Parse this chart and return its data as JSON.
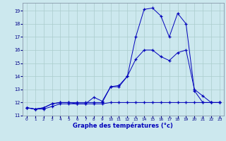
{
  "xlabel": "Graphe des températures (°c)",
  "bg_color": "#cce8ee",
  "grid_color": "#aacccc",
  "line_color": "#0000bb",
  "ylim": [
    11.0,
    19.6
  ],
  "xlim": [
    -0.5,
    23.5
  ],
  "yticks": [
    11,
    12,
    13,
    14,
    15,
    16,
    17,
    18,
    19
  ],
  "xticks": [
    0,
    1,
    2,
    3,
    4,
    5,
    6,
    7,
    8,
    9,
    10,
    11,
    12,
    13,
    14,
    15,
    16,
    17,
    18,
    19,
    20,
    21,
    22,
    23
  ],
  "line1_x": [
    0,
    1,
    2,
    3,
    4,
    5,
    6,
    7,
    8,
    9,
    10,
    11,
    12,
    13,
    14,
    15,
    16,
    17,
    18,
    19,
    20,
    21,
    22,
    23
  ],
  "line1_y": [
    11.6,
    11.5,
    11.5,
    11.7,
    11.9,
    11.9,
    11.9,
    11.9,
    11.9,
    11.9,
    12.0,
    12.0,
    12.0,
    12.0,
    12.0,
    12.0,
    12.0,
    12.0,
    12.0,
    12.0,
    12.0,
    12.0,
    12.0,
    12.0
  ],
  "line2_x": [
    0,
    1,
    2,
    3,
    4,
    5,
    6,
    7,
    8,
    9,
    10,
    11,
    12,
    13,
    14,
    15,
    16,
    17,
    18,
    19,
    20,
    21,
    22,
    23
  ],
  "line2_y": [
    11.6,
    11.5,
    11.6,
    11.9,
    12.0,
    12.0,
    12.0,
    12.0,
    12.0,
    12.0,
    13.2,
    13.3,
    14.0,
    15.3,
    16.0,
    16.0,
    15.5,
    15.2,
    15.8,
    16.0,
    13.0,
    12.5,
    12.0,
    12.0
  ],
  "line3_x": [
    0,
    1,
    2,
    3,
    4,
    5,
    6,
    7,
    8,
    9,
    10,
    11,
    12,
    13,
    14,
    15,
    16,
    17,
    18,
    19,
    20,
    21,
    22,
    23
  ],
  "line3_y": [
    11.6,
    11.5,
    11.6,
    11.9,
    12.0,
    12.0,
    11.9,
    11.9,
    12.4,
    12.1,
    13.2,
    13.2,
    14.0,
    17.0,
    19.1,
    19.2,
    18.6,
    17.0,
    18.8,
    18.0,
    12.9,
    12.0,
    12.0,
    12.0
  ]
}
